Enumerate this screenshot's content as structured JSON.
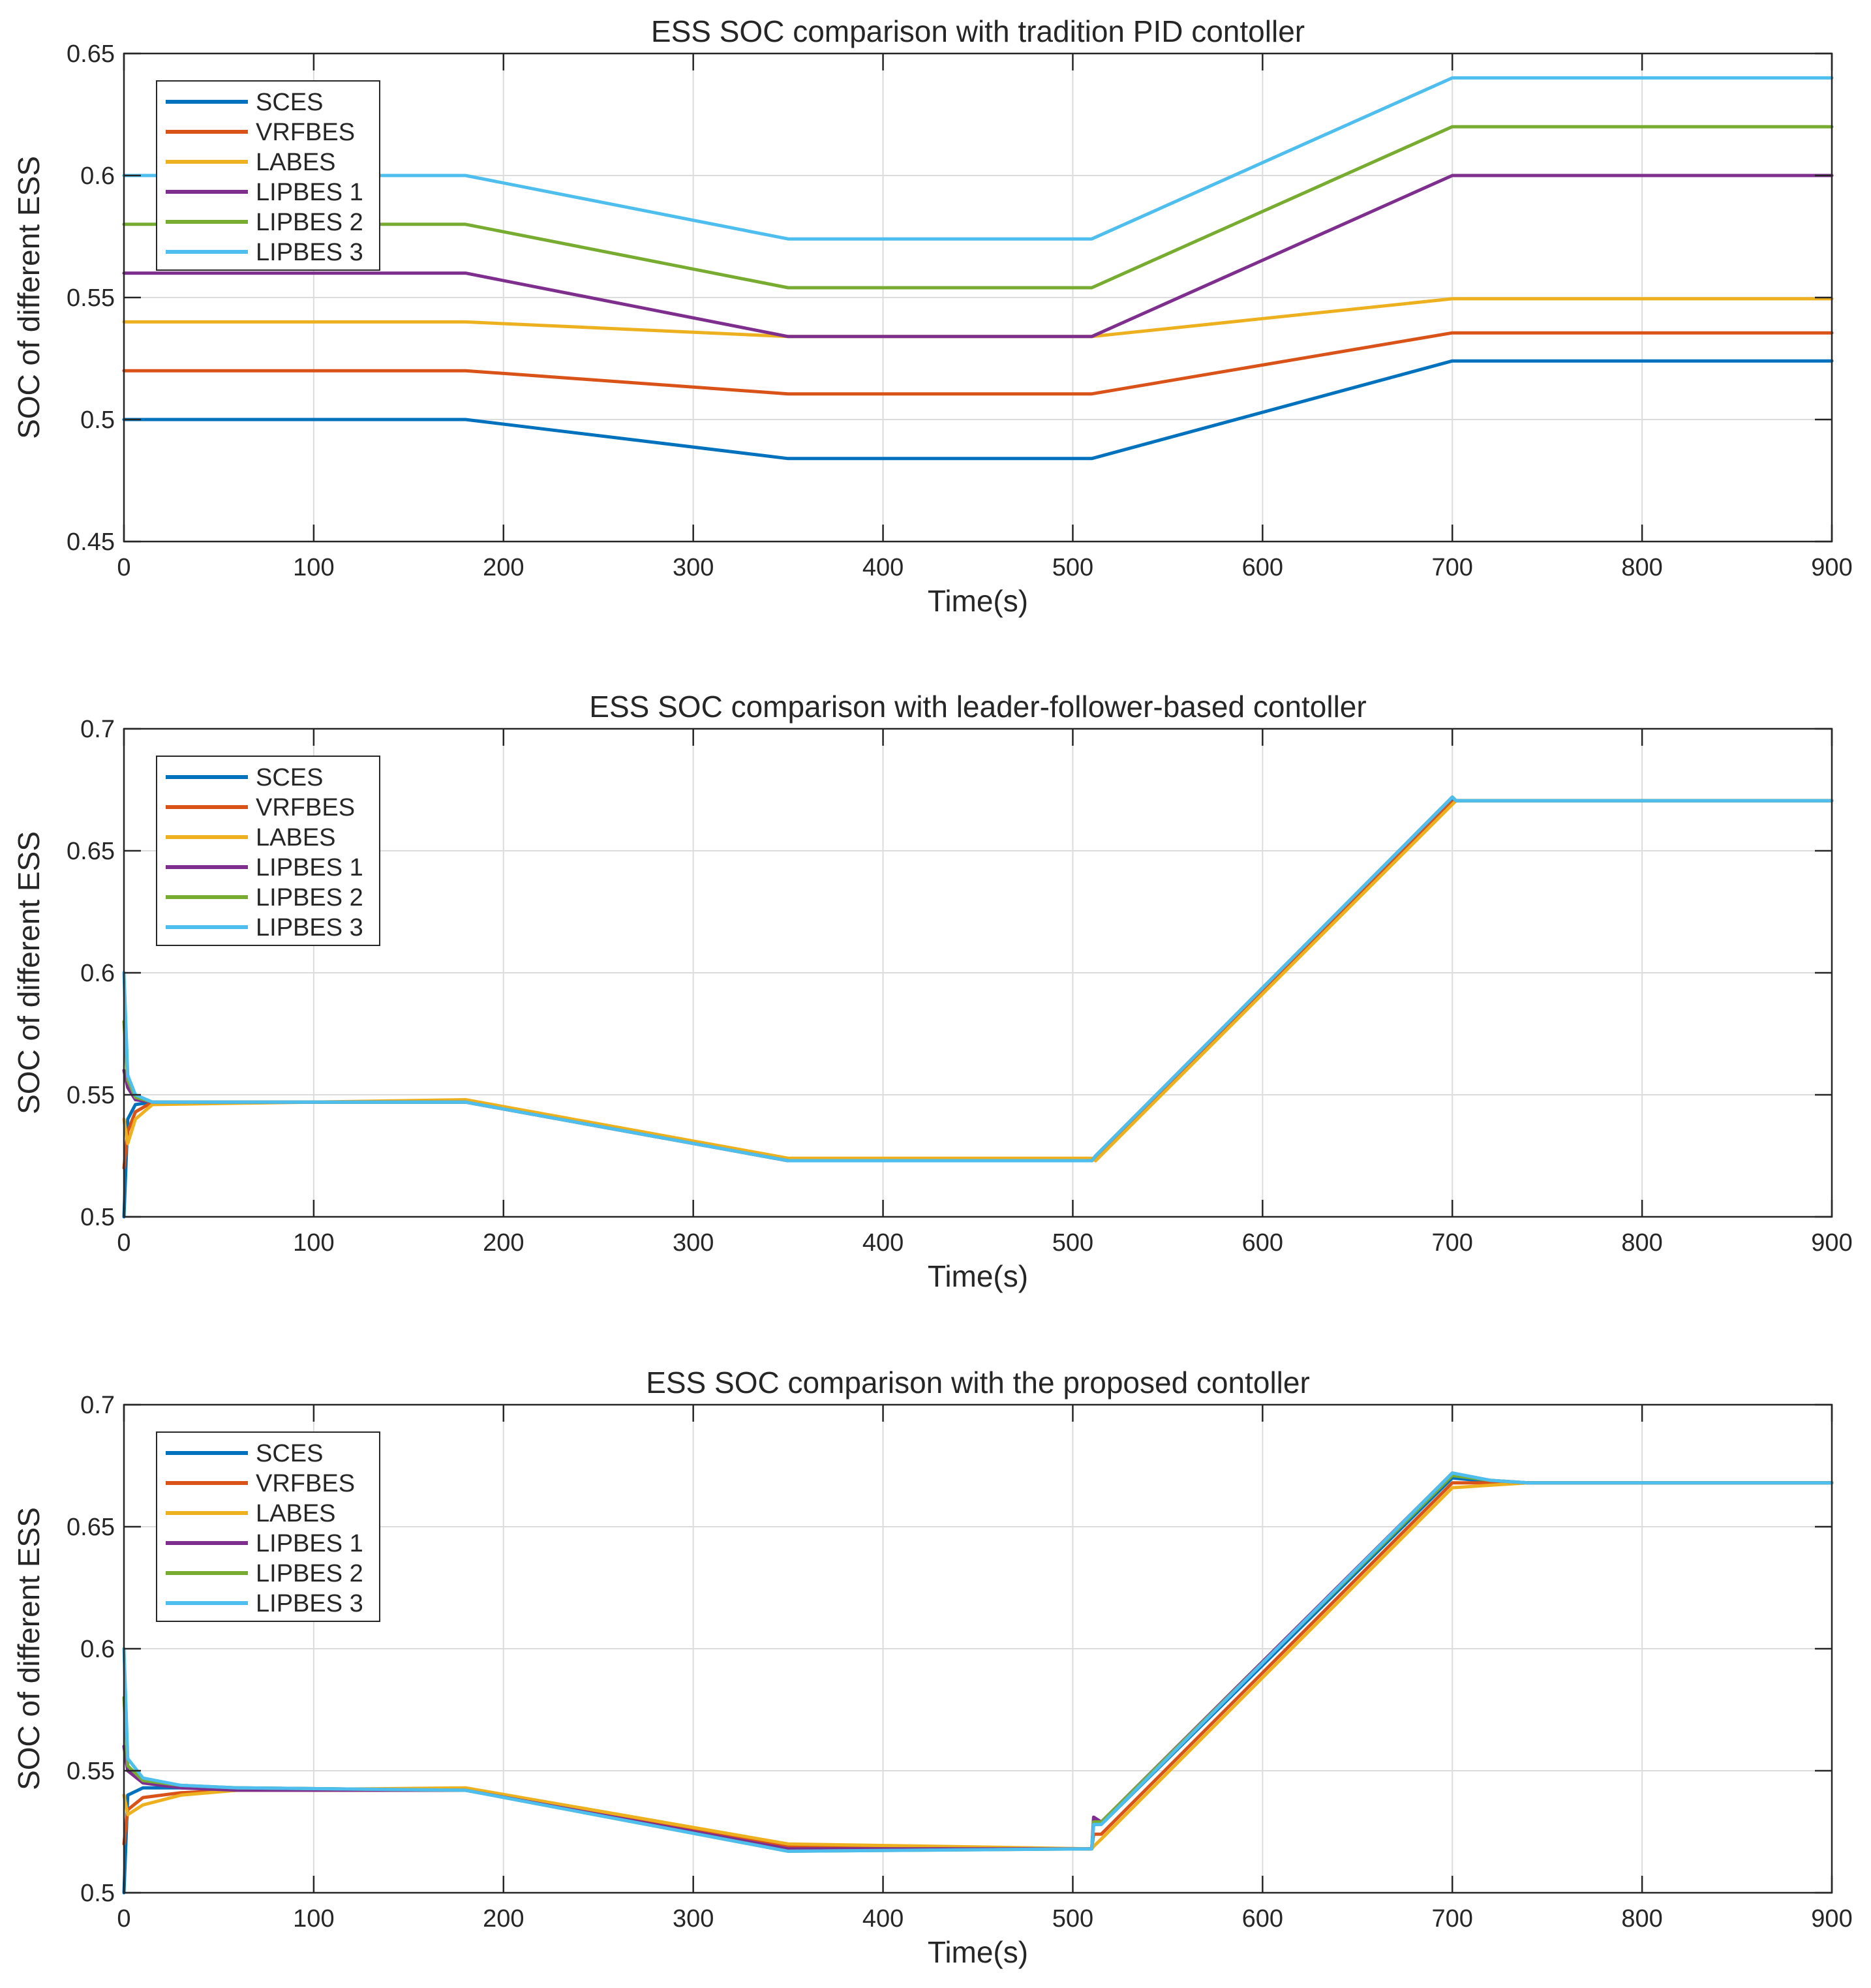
{
  "chart_data": [
    {
      "type": "line",
      "title": "ESS SOC comparison with tradition PID contoller",
      "xlabel": "Time(s)",
      "ylabel": "SOC of different ESS",
      "xlim": [
        0,
        900
      ],
      "ylim": [
        0.45,
        0.65
      ],
      "xticks": [
        0,
        100,
        200,
        300,
        400,
        500,
        600,
        700,
        800,
        900
      ],
      "xtick_labels": [
        "0",
        "100",
        "200",
        "300",
        "400",
        "500",
        "600",
        "700",
        "800",
        "900"
      ],
      "yticks": [
        0.45,
        0.5,
        0.55,
        0.6,
        0.65
      ],
      "ytick_labels": [
        "0.45",
        "0.5",
        "0.55",
        "0.6",
        "0.65"
      ],
      "grid": true,
      "legend_location": "top-left",
      "series": [
        {
          "name": "SCES",
          "color": "#0072BD",
          "x": [
            0,
            180,
            350,
            510,
            700,
            900
          ],
          "y": [
            0.5,
            0.5,
            0.484,
            0.484,
            0.524,
            0.524
          ]
        },
        {
          "name": "VRFBES",
          "color": "#D95319",
          "x": [
            0,
            180,
            350,
            510,
            700,
            900
          ],
          "y": [
            0.52,
            0.52,
            0.5105,
            0.5105,
            0.5355,
            0.5355
          ]
        },
        {
          "name": "LABES",
          "color": "#EDB120",
          "x": [
            0,
            180,
            350,
            510,
            700,
            900
          ],
          "y": [
            0.54,
            0.54,
            0.534,
            0.534,
            0.5495,
            0.5495
          ]
        },
        {
          "name": "LIPBES 1",
          "color": "#7E2F8E",
          "x": [
            0,
            180,
            350,
            510,
            700,
            900
          ],
          "y": [
            0.56,
            0.56,
            0.534,
            0.534,
            0.6,
            0.6
          ]
        },
        {
          "name": "LIPBES 2",
          "color": "#77AC30",
          "x": [
            0,
            180,
            350,
            510,
            700,
            900
          ],
          "y": [
            0.58,
            0.58,
            0.554,
            0.554,
            0.62,
            0.62
          ]
        },
        {
          "name": "LIPBES 3",
          "color": "#4DBEEE",
          "x": [
            0,
            180,
            350,
            510,
            700,
            900
          ],
          "y": [
            0.6,
            0.6,
            0.574,
            0.574,
            0.64,
            0.64
          ]
        }
      ]
    },
    {
      "type": "line",
      "title": "ESS SOC comparison with leader-follower-based contoller",
      "xlabel": "Time(s)",
      "ylabel": "SOC of different ESS",
      "xlim": [
        0,
        900
      ],
      "ylim": [
        0.5,
        0.7
      ],
      "xticks": [
        0,
        100,
        200,
        300,
        400,
        500,
        600,
        700,
        800,
        900
      ],
      "xtick_labels": [
        "0",
        "100",
        "200",
        "300",
        "400",
        "500",
        "600",
        "700",
        "800",
        "900"
      ],
      "yticks": [
        0.5,
        0.55,
        0.6,
        0.65,
        0.7
      ],
      "ytick_labels": [
        "0.5",
        "0.55",
        "0.6",
        "0.65",
        "0.7"
      ],
      "grid": true,
      "legend_location": "top-left",
      "series": [
        {
          "name": "SCES",
          "color": "#0072BD",
          "x": [
            0,
            2,
            6,
            15,
            180,
            350,
            510,
            512,
            700,
            702,
            900
          ],
          "y": [
            0.5,
            0.54,
            0.546,
            0.547,
            0.547,
            0.523,
            0.523,
            0.525,
            0.671,
            0.6705,
            0.6705
          ]
        },
        {
          "name": "VRFBES",
          "color": "#D95319",
          "x": [
            0,
            2,
            6,
            15,
            180,
            350,
            510,
            512,
            700,
            702,
            900
          ],
          "y": [
            0.52,
            0.535,
            0.543,
            0.547,
            0.547,
            0.523,
            0.523,
            0.524,
            0.67,
            0.6705,
            0.6705
          ]
        },
        {
          "name": "LABES",
          "color": "#EDB120",
          "x": [
            0,
            2,
            6,
            15,
            180,
            350,
            510,
            512,
            700,
            702,
            900
          ],
          "y": [
            0.54,
            0.53,
            0.54,
            0.546,
            0.548,
            0.524,
            0.524,
            0.523,
            0.669,
            0.6705,
            0.6705
          ]
        },
        {
          "name": "LIPBES 1",
          "color": "#7E2F8E",
          "x": [
            0,
            2,
            6,
            15,
            180,
            350,
            510,
            512,
            700,
            702,
            900
          ],
          "y": [
            0.56,
            0.553,
            0.548,
            0.547,
            0.547,
            0.523,
            0.523,
            0.525,
            0.672,
            0.6705,
            0.6705
          ]
        },
        {
          "name": "LIPBES 2",
          "color": "#77AC30",
          "x": [
            0,
            2,
            6,
            15,
            180,
            350,
            510,
            512,
            700,
            702,
            900
          ],
          "y": [
            0.58,
            0.556,
            0.549,
            0.547,
            0.547,
            0.523,
            0.523,
            0.525,
            0.672,
            0.6705,
            0.6705
          ]
        },
        {
          "name": "LIPBES 3",
          "color": "#4DBEEE",
          "x": [
            0,
            2,
            6,
            15,
            180,
            350,
            510,
            512,
            700,
            702,
            900
          ],
          "y": [
            0.6,
            0.558,
            0.55,
            0.547,
            0.547,
            0.523,
            0.523,
            0.525,
            0.672,
            0.6705,
            0.6705
          ]
        }
      ]
    },
    {
      "type": "line",
      "title": "ESS SOC comparison with the proposed contoller",
      "xlabel": "Time(s)",
      "ylabel": "SOC of different ESS",
      "xlim": [
        0,
        900
      ],
      "ylim": [
        0.5,
        0.7
      ],
      "xticks": [
        0,
        100,
        200,
        300,
        400,
        500,
        600,
        700,
        800,
        900
      ],
      "xtick_labels": [
        "0",
        "100",
        "200",
        "300",
        "400",
        "500",
        "600",
        "700",
        "800",
        "900"
      ],
      "yticks": [
        0.5,
        0.55,
        0.6,
        0.65,
        0.7
      ],
      "ytick_labels": [
        "0.5",
        "0.55",
        "0.6",
        "0.65",
        "0.7"
      ],
      "grid": true,
      "legend_location": "top-left",
      "series": [
        {
          "name": "SCES",
          "color": "#0072BD",
          "x": [
            0,
            2,
            10,
            30,
            60,
            180,
            350,
            510,
            511,
            515,
            700,
            720,
            740,
            900
          ],
          "y": [
            0.5,
            0.54,
            0.543,
            0.543,
            0.543,
            0.542,
            0.518,
            0.518,
            0.528,
            0.528,
            0.67,
            0.6685,
            0.668,
            0.668
          ]
        },
        {
          "name": "VRFBES",
          "color": "#D95319",
          "x": [
            0,
            2,
            10,
            30,
            60,
            180,
            350,
            510,
            511,
            515,
            700,
            720,
            740,
            900
          ],
          "y": [
            0.52,
            0.534,
            0.539,
            0.541,
            0.542,
            0.542,
            0.519,
            0.518,
            0.524,
            0.524,
            0.668,
            0.668,
            0.668,
            0.668
          ]
        },
        {
          "name": "LABES",
          "color": "#EDB120",
          "x": [
            0,
            2,
            10,
            30,
            60,
            180,
            350,
            510,
            511,
            515,
            700,
            720,
            740,
            900
          ],
          "y": [
            0.54,
            0.532,
            0.536,
            0.54,
            0.542,
            0.543,
            0.52,
            0.518,
            0.519,
            0.522,
            0.666,
            0.667,
            0.668,
            0.668
          ]
        },
        {
          "name": "LIPBES 1",
          "color": "#7E2F8E",
          "x": [
            0,
            2,
            10,
            30,
            60,
            180,
            350,
            510,
            511,
            515,
            700,
            720,
            740,
            900
          ],
          "y": [
            0.56,
            0.55,
            0.545,
            0.543,
            0.542,
            0.542,
            0.518,
            0.518,
            0.531,
            0.529,
            0.672,
            0.669,
            0.668,
            0.668
          ]
        },
        {
          "name": "LIPBES 2",
          "color": "#77AC30",
          "x": [
            0,
            2,
            10,
            30,
            60,
            180,
            350,
            510,
            511,
            515,
            700,
            720,
            740,
            900
          ],
          "y": [
            0.58,
            0.552,
            0.546,
            0.544,
            0.543,
            0.542,
            0.517,
            0.518,
            0.529,
            0.529,
            0.671,
            0.669,
            0.668,
            0.668
          ]
        },
        {
          "name": "LIPBES 3",
          "color": "#4DBEEE",
          "x": [
            0,
            2,
            10,
            30,
            60,
            180,
            350,
            510,
            511,
            515,
            700,
            720,
            740,
            900
          ],
          "y": [
            0.6,
            0.555,
            0.547,
            0.544,
            0.543,
            0.542,
            0.517,
            0.518,
            0.528,
            0.528,
            0.672,
            0.669,
            0.668,
            0.668
          ]
        }
      ]
    }
  ]
}
